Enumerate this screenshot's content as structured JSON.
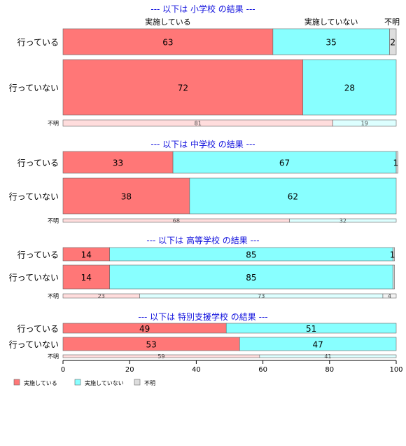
{
  "chart_data": {
    "type": "bar",
    "orientation": "horizontal",
    "stacked": true,
    "normalized": true,
    "xlim": [
      0,
      100
    ],
    "x_ticks": [
      "0",
      "20",
      "40",
      "60",
      "80",
      "100"
    ],
    "colors": {
      "実施している": "#ff7777",
      "実施していない": "#88ffff",
      "不明": "#dddddd"
    },
    "legend": {
      "placement": "bottom-left",
      "entries": [
        "実施している",
        "実施していない",
        "不明"
      ]
    },
    "column_labels": [
      {
        "text": "実施している",
        "over": 0
      },
      {
        "text": "実施していない",
        "over": 1
      },
      {
        "text": "不明",
        "over": 2
      }
    ],
    "panels": [
      {
        "title": "--- 以下は 小学校 の結果 ---",
        "rows": [
          {
            "label": "行っている",
            "values": [
              63,
              35,
              2
            ],
            "labels": [
              "63",
              "35",
              "2"
            ]
          },
          {
            "label": "行っていない",
            "values": [
              72,
              28,
              0
            ],
            "labels": [
              "72",
              "28",
              ""
            ]
          },
          {
            "label": "不明",
            "values": [
              81,
              19,
              0
            ],
            "labels": [
              "81",
              "19",
              ""
            ]
          }
        ]
      },
      {
        "title": "--- 以下は 中学校 の結果 ---",
        "rows": [
          {
            "label": "行っている",
            "values": [
              33,
              67,
              0.5
            ],
            "labels": [
              "33",
              "67",
              "1"
            ]
          },
          {
            "label": "行っていない",
            "values": [
              38,
              62,
              0
            ],
            "labels": [
              "38",
              "62",
              ""
            ]
          },
          {
            "label": "不明",
            "values": [
              68,
              32,
              0
            ],
            "labels": [
              "68",
              "32",
              ""
            ]
          }
        ]
      },
      {
        "title": "--- 以下は 高等学校 の結果 ---",
        "rows": [
          {
            "label": "行っている",
            "values": [
              14,
              85,
              0.5
            ],
            "labels": [
              "14",
              "85",
              "1"
            ]
          },
          {
            "label": "行っていない",
            "values": [
              14,
              85,
              0.5
            ],
            "labels": [
              "14",
              "85",
              ""
            ]
          },
          {
            "label": "不明",
            "values": [
              23,
              73,
              4
            ],
            "labels": [
              "23",
              "73",
              "4"
            ]
          }
        ]
      },
      {
        "title": "--- 以下は 特別支援学校 の結果 ---",
        "rows": [
          {
            "label": "行っている",
            "values": [
              49,
              51,
              0
            ],
            "labels": [
              "49",
              "51",
              ""
            ]
          },
          {
            "label": "行っていない",
            "values": [
              53,
              47,
              0
            ],
            "labels": [
              "53",
              "47",
              ""
            ]
          },
          {
            "label": "不明",
            "values": [
              59,
              41,
              0
            ],
            "labels": [
              "59",
              "41",
              ""
            ]
          }
        ]
      }
    ]
  }
}
